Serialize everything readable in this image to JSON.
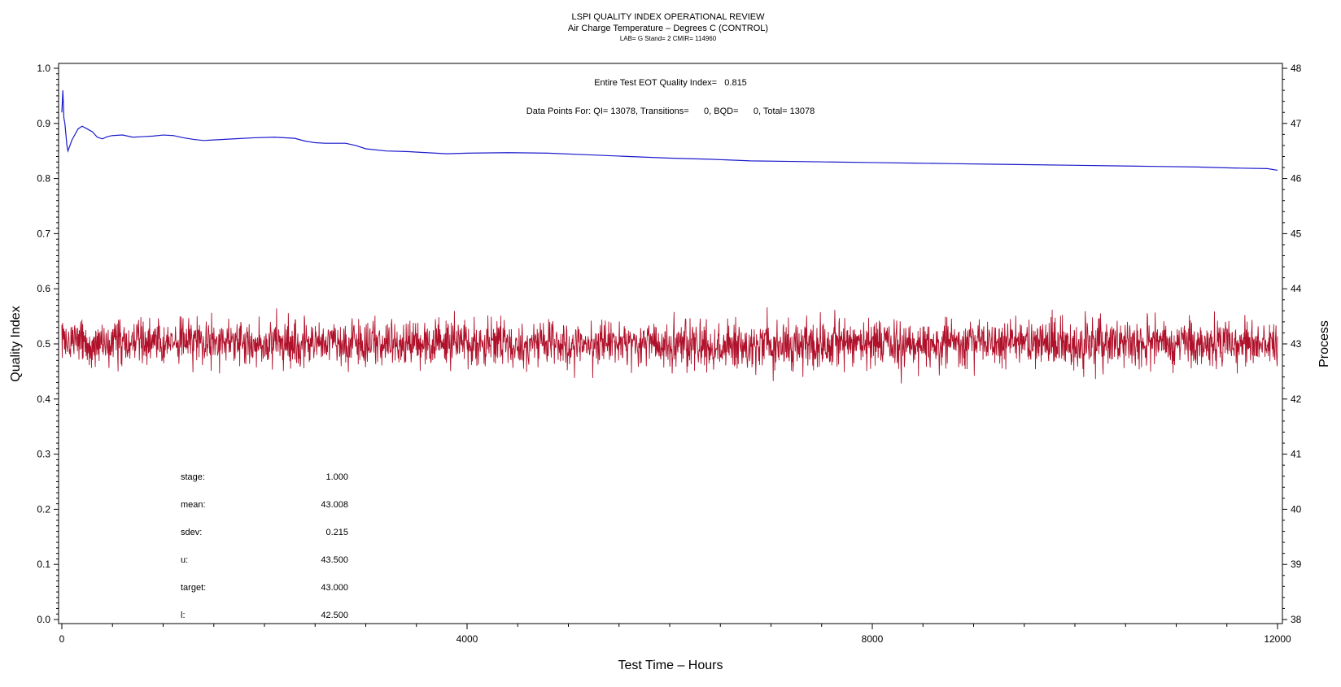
{
  "header": {
    "title": "LSPI QUALITY INDEX OPERATIONAL REVIEW",
    "subtitle": "Air Charge Temperature – Degrees C (CONTROL)",
    "sub_subtitle": "LAB= G Stand= 2 CMIR= 114960"
  },
  "annotations": {
    "eot_line": "Entire Test EOT Quality Index=   0.815",
    "points_line": "Data Points For: QI= 13078, Transitions=      0, BQD=      0, Total= 13078"
  },
  "stats": [
    {
      "label": "stage:",
      "value": "1.000"
    },
    {
      "label": "mean:",
      "value": "43.008"
    },
    {
      "label": "sdev:",
      "value": "0.215"
    },
    {
      "label": "u:",
      "value": "43.500"
    },
    {
      "label": "target:",
      "value": "43.000"
    },
    {
      "label": "l:",
      "value": "42.500"
    }
  ],
  "chart_data": {
    "type": "line",
    "xlabel": "Test Time – Hours",
    "ylabel": "Quality Index",
    "y2label": "Process",
    "xlim": [
      0,
      12000
    ],
    "ylim": [
      0,
      1
    ],
    "y2lim": [
      38,
      48
    ],
    "x_ticks": [
      0,
      4000,
      8000,
      12000
    ],
    "y_ticks": [
      "0.0",
      "0.1",
      "0.2",
      "0.3",
      "0.4",
      "0.5",
      "0.6",
      "0.7",
      "0.8",
      "0.9",
      "1.0"
    ],
    "y2_ticks": [
      "38",
      "39",
      "40",
      "41",
      "42",
      "43",
      "44",
      "45",
      "46",
      "47",
      "48"
    ],
    "grid": false,
    "series": [
      {
        "role": "quality_index",
        "axis": "left",
        "color": "#1a1acc",
        "x": [
          0,
          10,
          20,
          30,
          40,
          50,
          60,
          80,
          100,
          130,
          160,
          200,
          250,
          300,
          350,
          400,
          450,
          500,
          600,
          700,
          800,
          900,
          1000,
          1100,
          1200,
          1300,
          1400,
          1500,
          1700,
          1900,
          2100,
          2300,
          2400,
          2500,
          2600,
          2800,
          2900,
          3000,
          3200,
          3400,
          3600,
          3800,
          4000,
          4400,
          4800,
          5200,
          5600,
          6000,
          6400,
          6800,
          7200,
          7600,
          8000,
          8400,
          8800,
          9200,
          9600,
          10000,
          10400,
          10800,
          11200,
          11600,
          11900,
          12000
        ],
        "y": [
          0.92,
          0.96,
          0.91,
          0.9,
          0.88,
          0.86,
          0.85,
          0.86,
          0.87,
          0.88,
          0.89,
          0.895,
          0.89,
          0.885,
          0.875,
          0.872,
          0.876,
          0.878,
          0.879,
          0.875,
          0.876,
          0.877,
          0.879,
          0.878,
          0.874,
          0.871,
          0.869,
          0.87,
          0.872,
          0.874,
          0.875,
          0.873,
          0.868,
          0.865,
          0.864,
          0.864,
          0.86,
          0.854,
          0.85,
          0.849,
          0.847,
          0.845,
          0.846,
          0.847,
          0.846,
          0.843,
          0.84,
          0.837,
          0.835,
          0.832,
          0.831,
          0.83,
          0.829,
          0.828,
          0.827,
          0.826,
          0.825,
          0.824,
          0.823,
          0.822,
          0.821,
          0.819,
          0.818,
          0.815
        ]
      },
      {
        "role": "process",
        "axis": "right",
        "color": "#b0102a",
        "count": 13078,
        "mean": 43.008,
        "sdev": 0.215,
        "min": 42.2,
        "max": 43.9
      }
    ]
  }
}
